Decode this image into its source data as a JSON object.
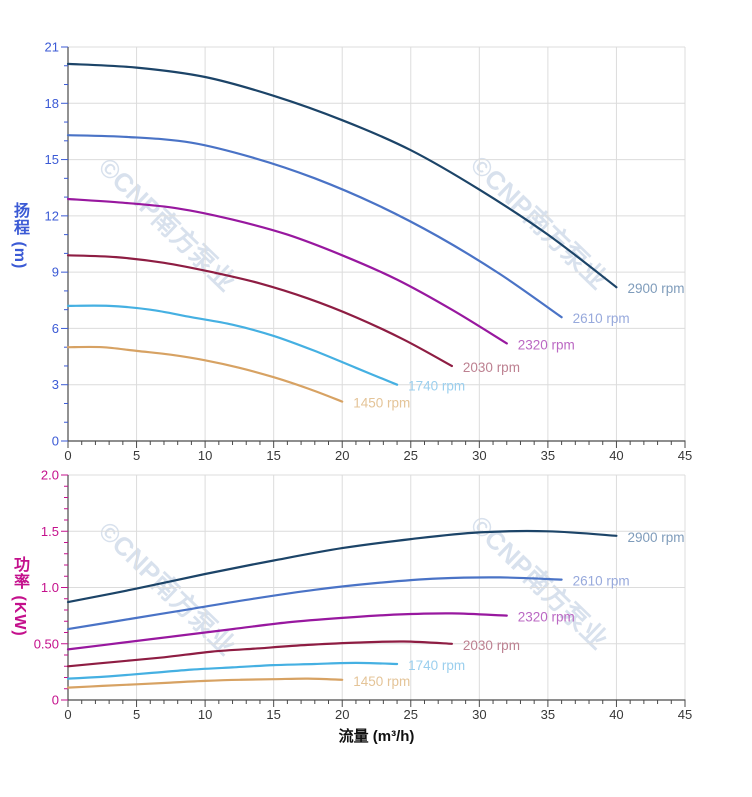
{
  "watermark": {
    "text": "©CNP南方泵业"
  },
  "colors": {
    "background": "#ffffff",
    "grid": "#dcdcdc",
    "spine": "#4a4a4a",
    "x_tick_label": "#383838",
    "head_axis": "#3b5ad5",
    "power_axis": "#c4108c",
    "x_title": "#111111"
  },
  "chart_data": [
    {
      "type": "line",
      "title": "",
      "xlabel": "",
      "ylabel": "扬程 (m)",
      "xlim": [
        0,
        45
      ],
      "ylim": [
        0,
        21
      ],
      "grid": true,
      "legend_position": "line-end-labels",
      "x_tick_labels": [
        "0",
        "5",
        "10",
        "15",
        "20",
        "25",
        "30",
        "35",
        "40",
        "45"
      ],
      "x_tick_values": [
        0,
        5,
        10,
        15,
        20,
        25,
        30,
        35,
        40,
        45
      ],
      "x_minor_step": 1,
      "y_tick_labels": [
        "0",
        "3",
        "6",
        "9",
        "12",
        "15",
        "18",
        "21"
      ],
      "y_tick_values": [
        0,
        3,
        6,
        9,
        12,
        15,
        18,
        21
      ],
      "y_minor_step": 1,
      "series": [
        {
          "name": "2900 rpm",
          "color": "#1c4468",
          "label_color": "#7f9cbb",
          "x": [
            0,
            5,
            10,
            15,
            20,
            25,
            30,
            35,
            40
          ],
          "y": [
            20.1,
            19.9,
            19.4,
            18.4,
            17.1,
            15.5,
            13.4,
            11.0,
            8.2
          ]
        },
        {
          "name": "2610 rpm",
          "color": "#4a73c6",
          "label_color": "#97a9dc",
          "x": [
            0,
            4.5,
            9,
            13.5,
            18,
            22.5,
            27,
            31.5,
            36
          ],
          "y": [
            16.3,
            16.2,
            15.9,
            15.1,
            14.0,
            12.6,
            10.9,
            8.9,
            6.6
          ]
        },
        {
          "name": "2320 rpm",
          "color": "#98189f",
          "label_color": "#bb68c3",
          "x": [
            0,
            4,
            8,
            12,
            16,
            20,
            24,
            28,
            32
          ],
          "y": [
            12.9,
            12.7,
            12.4,
            11.8,
            11.0,
            9.9,
            8.6,
            7.0,
            5.2
          ]
        },
        {
          "name": "2030 rpm",
          "color": "#8e1d43",
          "label_color": "#bd8191",
          "x": [
            0,
            3.5,
            7,
            10.5,
            14,
            17.5,
            21,
            24.5,
            28
          ],
          "y": [
            9.9,
            9.8,
            9.5,
            9.0,
            8.4,
            7.6,
            6.6,
            5.4,
            4.0
          ]
        },
        {
          "name": "1740 rpm",
          "color": "#45b0e2",
          "label_color": "#9bcfee",
          "x": [
            0,
            3,
            6,
            9,
            12,
            15,
            18,
            21,
            24
          ],
          "y": [
            7.2,
            7.2,
            7.0,
            6.6,
            6.2,
            5.6,
            4.8,
            3.9,
            3.0
          ]
        },
        {
          "name": "1450 rpm",
          "color": "#d7a263",
          "label_color": "#e4c498",
          "x": [
            0,
            2.5,
            5,
            7.5,
            10,
            12.5,
            15,
            17.5,
            20
          ],
          "y": [
            5.0,
            5.0,
            4.8,
            4.6,
            4.3,
            3.9,
            3.4,
            2.8,
            2.1
          ]
        }
      ]
    },
    {
      "type": "line",
      "title": "",
      "xlabel": "流量 (m³/h)",
      "ylabel": "功率 (KW)",
      "xlim": [
        0,
        45
      ],
      "ylim": [
        0,
        2.0
      ],
      "grid": true,
      "legend_position": "line-end-labels",
      "x_tick_labels": [
        "0",
        "5",
        "10",
        "15",
        "20",
        "25",
        "30",
        "35",
        "40",
        "45"
      ],
      "x_tick_values": [
        0,
        5,
        10,
        15,
        20,
        25,
        30,
        35,
        40,
        45
      ],
      "x_minor_step": 1,
      "y_tick_labels": [
        "0",
        "0.50",
        "1.0",
        "1.5",
        "2.0"
      ],
      "y_tick_values": [
        0,
        0.5,
        1.0,
        1.5,
        2.0
      ],
      "y_minor_step": 0.1,
      "series": [
        {
          "name": "2900 rpm",
          "color": "#1c4468",
          "label_color": "#7f9cbb",
          "x": [
            0,
            5,
            10,
            15,
            20,
            25,
            30,
            35,
            40
          ],
          "y": [
            0.87,
            0.99,
            1.12,
            1.24,
            1.35,
            1.43,
            1.49,
            1.5,
            1.46
          ]
        },
        {
          "name": "2610 rpm",
          "color": "#4a73c6",
          "label_color": "#97a9dc",
          "x": [
            0,
            4.5,
            9,
            13.5,
            18,
            22.5,
            27,
            31.5,
            36
          ],
          "y": [
            0.63,
            0.72,
            0.81,
            0.9,
            0.98,
            1.04,
            1.08,
            1.09,
            1.07
          ]
        },
        {
          "name": "2320 rpm",
          "color": "#98189f",
          "label_color": "#bb68c3",
          "x": [
            0,
            4,
            8,
            12,
            16,
            20,
            24,
            28,
            32
          ],
          "y": [
            0.45,
            0.51,
            0.57,
            0.63,
            0.69,
            0.73,
            0.76,
            0.77,
            0.75
          ]
        },
        {
          "name": "2030 rpm",
          "color": "#8e1d43",
          "label_color": "#bd8191",
          "x": [
            0,
            3.5,
            7,
            10.5,
            14,
            17.5,
            21,
            24.5,
            28
          ],
          "y": [
            0.3,
            0.34,
            0.38,
            0.43,
            0.46,
            0.49,
            0.51,
            0.52,
            0.5
          ]
        },
        {
          "name": "1740 rpm",
          "color": "#45b0e2",
          "label_color": "#9bcfee",
          "x": [
            0,
            3,
            6,
            9,
            12,
            15,
            18,
            21,
            24
          ],
          "y": [
            0.19,
            0.21,
            0.24,
            0.27,
            0.29,
            0.31,
            0.32,
            0.33,
            0.32
          ]
        },
        {
          "name": "1450 rpm",
          "color": "#d7a263",
          "label_color": "#e4c498",
          "x": [
            0,
            2.5,
            5,
            7.5,
            10,
            12.5,
            15,
            17.5,
            20
          ],
          "y": [
            0.11,
            0.125,
            0.14,
            0.155,
            0.17,
            0.18,
            0.185,
            0.19,
            0.18
          ]
        }
      ]
    }
  ]
}
